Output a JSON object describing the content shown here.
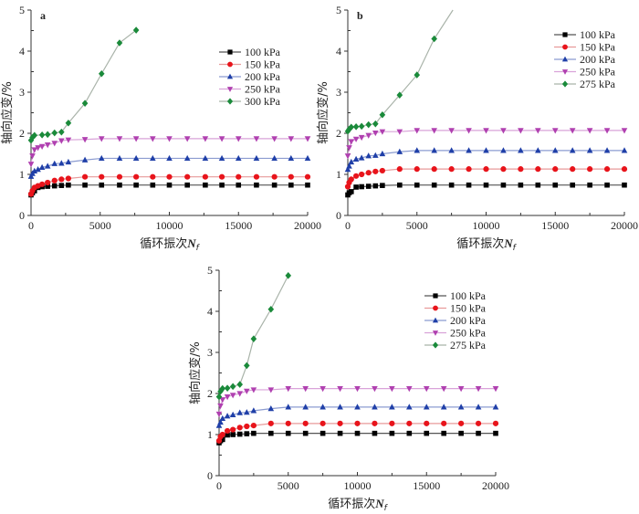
{
  "chart_data": [
    {
      "type": "line",
      "panel_label": "a",
      "xlabel": "循环振次",
      "xlabel_var": "N",
      "xlabel_sub": "f",
      "ylabel": "轴向应变/%",
      "xlim": [
        0,
        20000
      ],
      "ylim": [
        0,
        5
      ],
      "xticks": [
        0,
        5000,
        10000,
        15000,
        20000
      ],
      "yticks": [
        0,
        1,
        2,
        3,
        4,
        5
      ],
      "grid": false,
      "legend_position": "top-right",
      "series": [
        {
          "name": "100 kPa",
          "color": "#000000",
          "marker": "square",
          "x": [
            0,
            100,
            250,
            500,
            800,
            1200,
            1700,
            2200,
            2700,
            3900,
            5100,
            6400,
            7600,
            8800,
            10000,
            11300,
            12600,
            13800,
            15000,
            16300,
            17600,
            18800,
            20000
          ],
          "y": [
            0.5,
            0.55,
            0.6,
            0.68,
            0.7,
            0.71,
            0.72,
            0.73,
            0.74,
            0.74,
            0.74,
            0.74,
            0.74,
            0.74,
            0.74,
            0.74,
            0.74,
            0.74,
            0.74,
            0.74,
            0.74,
            0.74,
            0.74
          ]
        },
        {
          "name": "150 kPa",
          "color": "#e8141b",
          "marker": "circle",
          "x": [
            0,
            100,
            250,
            500,
            800,
            1200,
            1700,
            2200,
            2700,
            3900,
            5100,
            6400,
            7600,
            8800,
            10000,
            11300,
            12600,
            13800,
            15000,
            16300,
            17600,
            18800,
            20000
          ],
          "y": [
            0.52,
            0.6,
            0.68,
            0.72,
            0.76,
            0.8,
            0.85,
            0.88,
            0.9,
            0.94,
            0.94,
            0.94,
            0.94,
            0.94,
            0.94,
            0.94,
            0.94,
            0.94,
            0.94,
            0.94,
            0.94,
            0.94,
            0.94
          ]
        },
        {
          "name": "200 kPa",
          "color": "#1f3fa8",
          "marker": "triangle-up",
          "x": [
            0,
            100,
            250,
            500,
            800,
            1200,
            1700,
            2200,
            2700,
            3900,
            5100,
            6400,
            7600,
            8800,
            10000,
            11300,
            12600,
            13800,
            15000,
            16300,
            17600,
            18800,
            20000
          ],
          "y": [
            0.95,
            1.02,
            1.08,
            1.12,
            1.17,
            1.2,
            1.26,
            1.27,
            1.3,
            1.35,
            1.39,
            1.39,
            1.39,
            1.39,
            1.39,
            1.39,
            1.39,
            1.39,
            1.39,
            1.39,
            1.39,
            1.39,
            1.39
          ]
        },
        {
          "name": "250 kPa",
          "color": "#b040b0",
          "marker": "triangle-down",
          "x": [
            0,
            100,
            250,
            500,
            800,
            1200,
            1700,
            2200,
            2700,
            3900,
            5100,
            6400,
            7600,
            8800,
            10000,
            11300,
            12600,
            13800,
            15000,
            16300,
            17600,
            18800,
            20000
          ],
          "y": [
            1.25,
            1.45,
            1.6,
            1.65,
            1.68,
            1.72,
            1.76,
            1.82,
            1.84,
            1.85,
            1.87,
            1.87,
            1.87,
            1.87,
            1.87,
            1.87,
            1.87,
            1.87,
            1.87,
            1.87,
            1.87,
            1.87,
            1.87
          ]
        },
        {
          "name": "300 kPa",
          "color": "#1a8a3a",
          "marker": "diamond",
          "x": [
            0,
            100,
            250,
            800,
            1200,
            1700,
            2200,
            2700,
            3900,
            5100,
            6400,
            7600
          ],
          "y": [
            1.83,
            1.9,
            1.95,
            1.96,
            1.97,
            2.01,
            2.03,
            2.25,
            2.73,
            3.45,
            4.2,
            4.51
          ]
        }
      ]
    },
    {
      "type": "line",
      "panel_label": "b",
      "xlabel": "循环振次",
      "xlabel_var": "N",
      "xlabel_sub": "f",
      "ylabel": "轴向应变/%",
      "xlim": [
        0,
        20000
      ],
      "ylim": [
        0,
        5
      ],
      "xticks": [
        0,
        5000,
        10000,
        15000,
        20000
      ],
      "yticks": [
        0,
        1,
        2,
        3,
        4,
        5
      ],
      "grid": false,
      "legend_position": "top-right",
      "series": [
        {
          "name": "100 kPa",
          "color": "#000000",
          "marker": "square",
          "x": [
            0,
            100,
            250,
            600,
            1000,
            1500,
            2000,
            2500,
            3750,
            5000,
            6250,
            7500,
            8750,
            10000,
            11250,
            12500,
            13750,
            15000,
            16250,
            17500,
            18750,
            20000
          ],
          "y": [
            0.5,
            0.55,
            0.58,
            0.69,
            0.7,
            0.71,
            0.72,
            0.73,
            0.74,
            0.74,
            0.74,
            0.74,
            0.74,
            0.74,
            0.74,
            0.74,
            0.74,
            0.74,
            0.74,
            0.74,
            0.74,
            0.74
          ]
        },
        {
          "name": "150 kPa",
          "color": "#e8141b",
          "marker": "circle",
          "x": [
            0,
            100,
            250,
            600,
            1000,
            1500,
            2000,
            2500,
            3750,
            5000,
            6250,
            7500,
            8750,
            10000,
            11250,
            12500,
            13750,
            15000,
            16250,
            17500,
            18750,
            20000
          ],
          "y": [
            0.7,
            0.8,
            0.88,
            0.96,
            1.0,
            1.04,
            1.07,
            1.09,
            1.13,
            1.13,
            1.13,
            1.13,
            1.13,
            1.13,
            1.13,
            1.13,
            1.13,
            1.13,
            1.13,
            1.13,
            1.13,
            1.13
          ]
        },
        {
          "name": "200 kPa",
          "color": "#1f3fa8",
          "marker": "triangle-up",
          "x": [
            0,
            100,
            250,
            600,
            1000,
            1500,
            2000,
            2500,
            3750,
            5000,
            6250,
            7500,
            8750,
            10000,
            11250,
            12500,
            13750,
            15000,
            16250,
            17500,
            18750,
            20000
          ],
          "y": [
            1.12,
            1.2,
            1.3,
            1.37,
            1.4,
            1.45,
            1.46,
            1.5,
            1.55,
            1.58,
            1.58,
            1.58,
            1.58,
            1.58,
            1.58,
            1.58,
            1.58,
            1.58,
            1.58,
            1.58,
            1.58,
            1.58
          ]
        },
        {
          "name": "250 kPa",
          "color": "#b040b0",
          "marker": "triangle-down",
          "x": [
            0,
            100,
            250,
            600,
            1000,
            1500,
            2000,
            2500,
            3750,
            5000,
            6250,
            7500,
            8750,
            10000,
            11250,
            12500,
            13750,
            15000,
            16250,
            17500,
            18750,
            20000
          ],
          "y": [
            1.45,
            1.65,
            1.8,
            1.86,
            1.9,
            1.95,
            2.01,
            2.04,
            2.04,
            2.07,
            2.07,
            2.07,
            2.07,
            2.07,
            2.07,
            2.07,
            2.07,
            2.07,
            2.07,
            2.07,
            2.07,
            2.07
          ]
        },
        {
          "name": "275 kPa",
          "color": "#1a8a3a",
          "marker": "diamond",
          "x": [
            0,
            100,
            250,
            600,
            1000,
            1500,
            2000,
            2500,
            3750,
            5000,
            6250
          ],
          "y": [
            2.05,
            2.1,
            2.15,
            2.16,
            2.17,
            2.21,
            2.23,
            2.45,
            2.93,
            3.42,
            4.3
          ],
          "line_extends_to": {
            "x": 7600,
            "y": 5.0
          }
        }
      ]
    },
    {
      "type": "line",
      "panel_label": "",
      "xlabel": "循环振次",
      "xlabel_var": "N",
      "xlabel_sub": "f",
      "ylabel": "轴向应变/%",
      "xlim": [
        0,
        20000
      ],
      "ylim": [
        0,
        5
      ],
      "xticks": [
        0,
        5000,
        10000,
        15000,
        20000
      ],
      "yticks": [
        0,
        1,
        2,
        3,
        4,
        5
      ],
      "grid": false,
      "legend_position": "top-right",
      "series": [
        {
          "name": "100 kPa",
          "color": "#000000",
          "marker": "square",
          "x": [
            0,
            100,
            250,
            600,
            1000,
            1500,
            2000,
            2500,
            3750,
            5000,
            6250,
            7500,
            8750,
            10000,
            11250,
            12500,
            13750,
            15000,
            16250,
            17500,
            18750,
            20000
          ],
          "y": [
            0.8,
            0.85,
            0.88,
            0.99,
            1.0,
            1.01,
            1.02,
            1.03,
            1.03,
            1.03,
            1.03,
            1.03,
            1.03,
            1.03,
            1.03,
            1.03,
            1.03,
            1.03,
            1.03,
            1.03,
            1.03,
            1.03
          ]
        },
        {
          "name": "150 kPa",
          "color": "#e8141b",
          "marker": "circle",
          "x": [
            0,
            100,
            250,
            600,
            1000,
            1500,
            2000,
            2500,
            3750,
            5000,
            6250,
            7500,
            8750,
            10000,
            11250,
            12500,
            13750,
            15000,
            16250,
            17500,
            18750,
            20000
          ],
          "y": [
            0.85,
            0.95,
            1.0,
            1.09,
            1.12,
            1.17,
            1.2,
            1.22,
            1.27,
            1.27,
            1.27,
            1.27,
            1.27,
            1.27,
            1.27,
            1.27,
            1.27,
            1.27,
            1.27,
            1.27,
            1.27,
            1.27
          ]
        },
        {
          "name": "200 kPa",
          "color": "#1f3fa8",
          "marker": "triangle-up",
          "x": [
            0,
            100,
            250,
            600,
            1000,
            1500,
            2000,
            2500,
            3750,
            5000,
            6250,
            7500,
            8750,
            10000,
            11250,
            12500,
            13750,
            15000,
            16250,
            17500,
            18750,
            20000
          ],
          "y": [
            1.22,
            1.3,
            1.39,
            1.45,
            1.48,
            1.53,
            1.54,
            1.58,
            1.63,
            1.67,
            1.67,
            1.67,
            1.67,
            1.67,
            1.67,
            1.67,
            1.67,
            1.67,
            1.67,
            1.67,
            1.67,
            1.67
          ]
        },
        {
          "name": "250 kPa",
          "color": "#b040b0",
          "marker": "triangle-down",
          "x": [
            0,
            100,
            250,
            600,
            1000,
            1500,
            2000,
            2500,
            3750,
            5000,
            6250,
            7500,
            8750,
            10000,
            11250,
            12500,
            13750,
            15000,
            16250,
            17500,
            18750,
            20000
          ],
          "y": [
            1.5,
            1.7,
            1.85,
            1.92,
            1.96,
            2.0,
            2.06,
            2.09,
            2.09,
            2.12,
            2.12,
            2.12,
            2.12,
            2.12,
            2.12,
            2.12,
            2.12,
            2.12,
            2.12,
            2.12,
            2.12,
            2.12
          ]
        },
        {
          "name": "275 kPa",
          "color": "#1a8a3a",
          "marker": "diamond",
          "x": [
            0,
            100,
            250,
            600,
            1000,
            1500,
            2000,
            2500,
            3750,
            5000
          ],
          "y": [
            1.92,
            2.05,
            2.12,
            2.13,
            2.17,
            2.22,
            2.68,
            3.33,
            4.05,
            4.87
          ]
        }
      ]
    }
  ]
}
